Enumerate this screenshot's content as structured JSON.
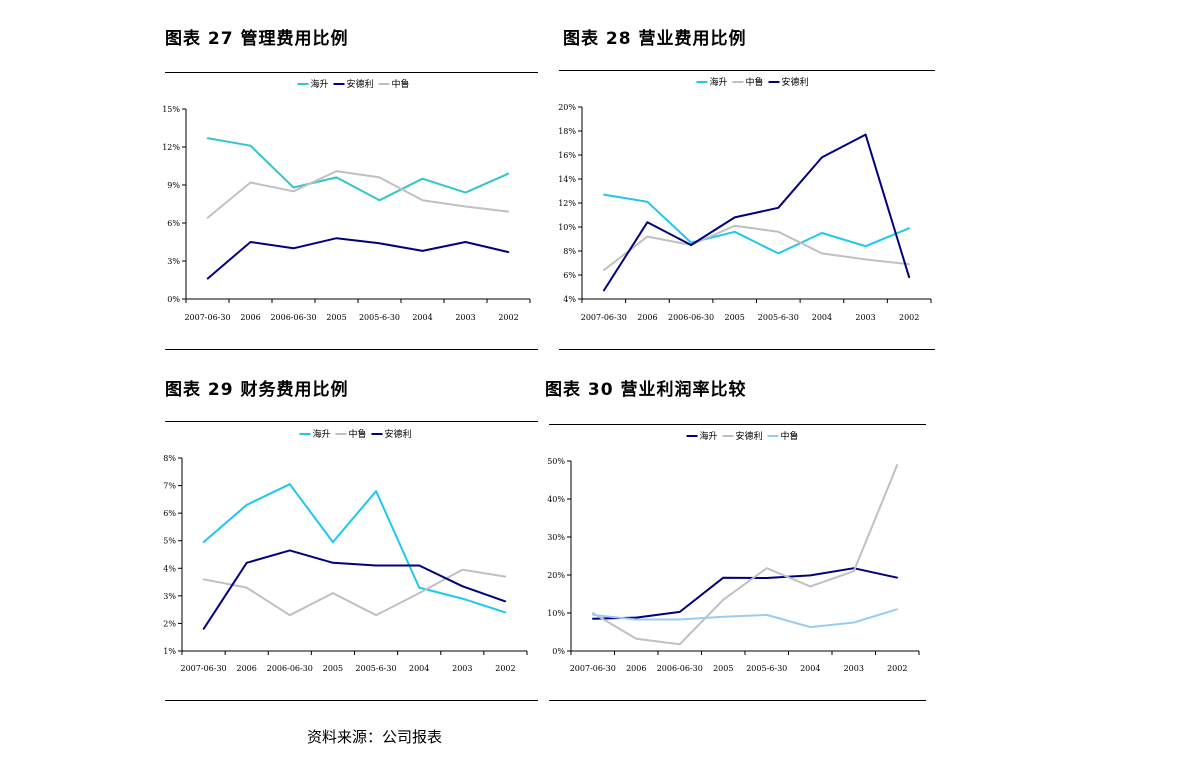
{
  "colors": {
    "haisheng_cyan": "#33C5C9",
    "andeli_navy": "#000080",
    "zhonglu_gray": "#C0C0C0",
    "haisheng_sky": "#1CC8F0",
    "zhonglu_lightblue": "#99CCF5"
  },
  "source_text": "资料来源：公司报表",
  "figures": [
    {
      "title": "图表 27   管理费用比例",
      "chart_data": {
        "type": "line",
        "categories": [
          "2007-06-30",
          "2006",
          "2006-06-30",
          "2005",
          "2005-6-30",
          "2004",
          "2003",
          "2002"
        ],
        "yticks": [
          "0%",
          "3%",
          "6%",
          "9%",
          "12%",
          "15%"
        ],
        "ylim": [
          0,
          15
        ],
        "legend": [
          "海升",
          "安德利",
          "中鲁"
        ],
        "legend_position": "top-center",
        "series": [
          {
            "name": "海升",
            "color": "#33C5C9",
            "values": [
              12.7,
              12.1,
              8.8,
              9.6,
              7.8,
              9.5,
              8.4,
              9.9
            ]
          },
          {
            "name": "安德利",
            "color": "#000080",
            "values": [
              1.6,
              4.5,
              4.0,
              4.8,
              4.4,
              3.8,
              4.5,
              3.7
            ]
          },
          {
            "name": "中鲁",
            "color": "#C0C0C0",
            "values": [
              6.4,
              9.2,
              8.5,
              10.1,
              9.6,
              7.8,
              7.3,
              6.9
            ]
          }
        ]
      }
    },
    {
      "title": "图表 28  营业费用比例",
      "chart_data": {
        "type": "line",
        "categories": [
          "2007-06-30",
          "2006",
          "2006-06-30",
          "2005",
          "2005-6-30",
          "2004",
          "2003",
          "2002"
        ],
        "yticks": [
          "4%",
          "6%",
          "8%",
          "10%",
          "12%",
          "14%",
          "16%",
          "18%",
          "20%"
        ],
        "ylim": [
          4,
          20
        ],
        "legend": [
          "海升",
          "中鲁",
          "安德利"
        ],
        "legend_position": "top-center",
        "series": [
          {
            "name": "海升",
            "color": "#1CC8F0",
            "values": [
              12.7,
              12.1,
              8.7,
              9.6,
              7.8,
              9.5,
              8.4,
              9.9
            ]
          },
          {
            "name": "中鲁",
            "color": "#C0C0C0",
            "values": [
              6.4,
              9.2,
              8.5,
              10.1,
              9.6,
              7.8,
              7.3,
              6.9
            ]
          },
          {
            "name": "安德利",
            "color": "#000080",
            "values": [
              4.7,
              10.4,
              8.5,
              10.8,
              11.6,
              15.8,
              17.7,
              5.8
            ]
          }
        ]
      }
    },
    {
      "title": "图表 29   财务费用比例",
      "chart_data": {
        "type": "line",
        "categories": [
          "2007-06-30",
          "2006",
          "2006-06-30",
          "2005",
          "2005-6-30",
          "2004",
          "2003",
          "2002"
        ],
        "yticks": [
          "1%",
          "2%",
          "3%",
          "4%",
          "5%",
          "6%",
          "7%",
          "8%"
        ],
        "ylim": [
          1,
          8
        ],
        "legend": [
          "海升",
          "中鲁",
          "安德利"
        ],
        "legend_position": "top-center",
        "series": [
          {
            "name": "海升",
            "color": "#1CC8F0",
            "values": [
              4.95,
              6.3,
              7.05,
              4.95,
              6.8,
              3.3,
              2.9,
              2.4
            ]
          },
          {
            "name": "中鲁",
            "color": "#C0C0C0",
            "values": [
              3.6,
              3.3,
              2.3,
              3.1,
              2.3,
              3.1,
              3.95,
              3.7
            ]
          },
          {
            "name": "安德利",
            "color": "#000080",
            "values": [
              1.8,
              4.2,
              4.65,
              4.2,
              4.1,
              4.1,
              3.35,
              2.8
            ]
          }
        ]
      }
    },
    {
      "title": "图表 30   营业利润率比较",
      "chart_data": {
        "type": "line",
        "categories": [
          "2007-06-30",
          "2006",
          "2006-06-30",
          "2005",
          "2005-6-30",
          "2004",
          "2003",
          "2002"
        ],
        "yticks": [
          "0%",
          "10%",
          "20%",
          "30%",
          "40%",
          "50%"
        ],
        "ylim": [
          0,
          50
        ],
        "legend": [
          "海升",
          "安德利",
          "中鲁"
        ],
        "legend_position": "top-center",
        "series": [
          {
            "name": "海升",
            "color": "#000080",
            "values": [
              8.5,
              8.8,
              10.3,
              19.3,
              19.2,
              19.9,
              21.8,
              19.3
            ]
          },
          {
            "name": "安德利",
            "color": "#C0C0C0",
            "values": [
              10.0,
              3.2,
              1.8,
              13.5,
              21.8,
              17.0,
              21.0,
              49.0
            ]
          },
          {
            "name": "中鲁",
            "color": "#99CCF5",
            "values": [
              9.5,
              8.3,
              8.3,
              9.0,
              9.5,
              6.3,
              7.5,
              11.0
            ]
          }
        ]
      }
    }
  ]
}
